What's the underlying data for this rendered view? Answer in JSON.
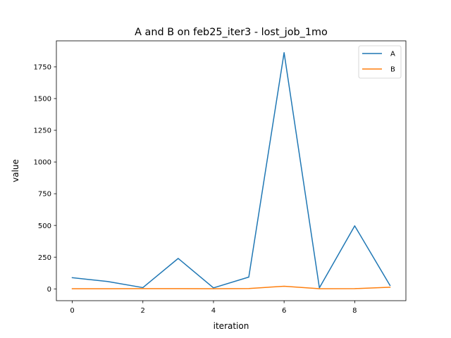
{
  "chart_data": {
    "type": "line",
    "title": "A and B on feb25_iter3 - lost_job_1mo",
    "xlabel": "iteration",
    "ylabel": "value",
    "xlim": [
      -0.45,
      9.45
    ],
    "ylim": [
      -93,
      1955
    ],
    "xticks": [
      0,
      2,
      4,
      6,
      8
    ],
    "yticks": [
      0,
      250,
      500,
      750,
      1000,
      1250,
      1500,
      1750
    ],
    "legend_position": "top-right",
    "grid": false,
    "x": [
      0,
      1,
      2,
      3,
      4,
      5,
      6,
      7,
      8,
      9
    ],
    "series": [
      {
        "name": "A",
        "color": "#1f77b4",
        "values": [
          88,
          58,
          10,
          240,
          8,
          93,
          1862,
          8,
          497,
          27
        ]
      },
      {
        "name": "B",
        "color": "#ff7f0e",
        "values": [
          1,
          1,
          2,
          2,
          1,
          3,
          21,
          1,
          2,
          13
        ]
      }
    ]
  }
}
